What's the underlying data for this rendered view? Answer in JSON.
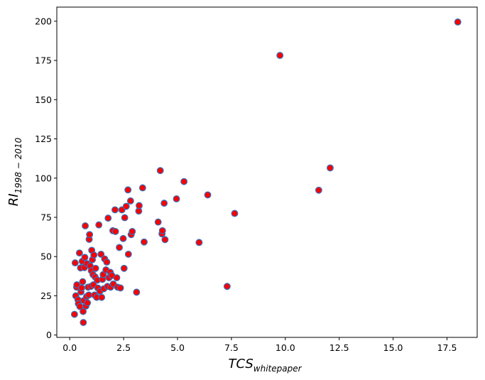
{
  "chart_data": {
    "type": "scatter",
    "title": "",
    "xlabel": {
      "main": "TCS",
      "sub": "whitepaper"
    },
    "ylabel": {
      "main": "RI",
      "sub": "1998 − 2010"
    },
    "xlim": [
      -0.6,
      18.9
    ],
    "ylim": [
      -1.5,
      209
    ],
    "xticks": [
      0.0,
      2.5,
      5.0,
      7.5,
      10.0,
      12.5,
      15.0,
      17.5
    ],
    "xtick_labels": [
      "0.0",
      "2.5",
      "5.0",
      "7.5",
      "10.0",
      "12.5",
      "15.0",
      "17.5"
    ],
    "yticks": [
      0,
      25,
      50,
      75,
      100,
      125,
      150,
      175,
      200
    ],
    "ytick_labels": [
      "0",
      "25",
      "50",
      "75",
      "100",
      "125",
      "150",
      "175",
      "200"
    ],
    "grid": false,
    "marker": {
      "face_color": "#ff0000",
      "edge_color": "#3b6db5"
    },
    "points": [
      {
        "x": 0.22,
        "y": 13.2
      },
      {
        "x": 0.25,
        "y": 46.0
      },
      {
        "x": 0.28,
        "y": 25.0
      },
      {
        "x": 0.32,
        "y": 30.5
      },
      {
        "x": 0.33,
        "y": 32.0
      },
      {
        "x": 0.38,
        "y": 22.5
      },
      {
        "x": 0.4,
        "y": 20.0
      },
      {
        "x": 0.45,
        "y": 52.3
      },
      {
        "x": 0.47,
        "y": 18.2
      },
      {
        "x": 0.5,
        "y": 42.8
      },
      {
        "x": 0.52,
        "y": 27.5
      },
      {
        "x": 0.55,
        "y": 30.0
      },
      {
        "x": 0.58,
        "y": 47.0
      },
      {
        "x": 0.6,
        "y": 34.0
      },
      {
        "x": 0.62,
        "y": 15.0
      },
      {
        "x": 0.63,
        "y": 8.0
      },
      {
        "x": 0.65,
        "y": 22.0
      },
      {
        "x": 0.68,
        "y": 43.0
      },
      {
        "x": 0.7,
        "y": 49.5
      },
      {
        "x": 0.72,
        "y": 69.6
      },
      {
        "x": 0.75,
        "y": 18.5
      },
      {
        "x": 0.78,
        "y": 24.5
      },
      {
        "x": 0.8,
        "y": 45.5
      },
      {
        "x": 0.82,
        "y": 20.5
      },
      {
        "x": 0.85,
        "y": 30.5
      },
      {
        "x": 0.88,
        "y": 25.5
      },
      {
        "x": 0.9,
        "y": 61.0
      },
      {
        "x": 0.92,
        "y": 64.0
      },
      {
        "x": 0.95,
        "y": 44.0
      },
      {
        "x": 0.98,
        "y": 31.0
      },
      {
        "x": 1.0,
        "y": 41.0
      },
      {
        "x": 1.02,
        "y": 54.0
      },
      {
        "x": 1.05,
        "y": 48.0
      },
      {
        "x": 1.08,
        "y": 38.5
      },
      {
        "x": 1.1,
        "y": 32.0
      },
      {
        "x": 1.12,
        "y": 51.0
      },
      {
        "x": 1.15,
        "y": 25.5
      },
      {
        "x": 1.18,
        "y": 37.0
      },
      {
        "x": 1.2,
        "y": 42.5
      },
      {
        "x": 1.25,
        "y": 24.0
      },
      {
        "x": 1.28,
        "y": 35.0
      },
      {
        "x": 1.3,
        "y": 30.0
      },
      {
        "x": 1.35,
        "y": 70.2
      },
      {
        "x": 1.4,
        "y": 28.0
      },
      {
        "x": 1.45,
        "y": 51.5
      },
      {
        "x": 1.48,
        "y": 24.0
      },
      {
        "x": 1.52,
        "y": 35.5
      },
      {
        "x": 1.55,
        "y": 38.5
      },
      {
        "x": 1.58,
        "y": 29.5
      },
      {
        "x": 1.62,
        "y": 48.5
      },
      {
        "x": 1.68,
        "y": 41.5
      },
      {
        "x": 1.72,
        "y": 46.5
      },
      {
        "x": 1.75,
        "y": 31.0
      },
      {
        "x": 1.78,
        "y": 74.5
      },
      {
        "x": 1.82,
        "y": 36.5
      },
      {
        "x": 1.88,
        "y": 40.0
      },
      {
        "x": 1.9,
        "y": 30.5
      },
      {
        "x": 1.95,
        "y": 38.0
      },
      {
        "x": 2.0,
        "y": 66.5
      },
      {
        "x": 2.02,
        "y": 32.5
      },
      {
        "x": 2.1,
        "y": 79.8
      },
      {
        "x": 2.12,
        "y": 66.0
      },
      {
        "x": 2.18,
        "y": 36.5
      },
      {
        "x": 2.22,
        "y": 30.5
      },
      {
        "x": 2.3,
        "y": 55.8
      },
      {
        "x": 2.35,
        "y": 30.0
      },
      {
        "x": 2.42,
        "y": 79.8
      },
      {
        "x": 2.48,
        "y": 61.5
      },
      {
        "x": 2.52,
        "y": 42.5
      },
      {
        "x": 2.55,
        "y": 74.8
      },
      {
        "x": 2.62,
        "y": 82.0
      },
      {
        "x": 2.7,
        "y": 92.5
      },
      {
        "x": 2.72,
        "y": 51.5
      },
      {
        "x": 2.82,
        "y": 85.5
      },
      {
        "x": 2.85,
        "y": 64.0
      },
      {
        "x": 2.9,
        "y": 66.0
      },
      {
        "x": 3.1,
        "y": 27.3
      },
      {
        "x": 3.2,
        "y": 79.0
      },
      {
        "x": 3.22,
        "y": 82.5
      },
      {
        "x": 3.38,
        "y": 93.8
      },
      {
        "x": 3.45,
        "y": 59.3
      },
      {
        "x": 4.1,
        "y": 72.0
      },
      {
        "x": 4.2,
        "y": 104.8
      },
      {
        "x": 4.28,
        "y": 64.5
      },
      {
        "x": 4.3,
        "y": 66.5
      },
      {
        "x": 4.38,
        "y": 84.0
      },
      {
        "x": 4.42,
        "y": 60.8
      },
      {
        "x": 4.95,
        "y": 86.8
      },
      {
        "x": 5.3,
        "y": 97.8
      },
      {
        "x": 6.0,
        "y": 59.0
      },
      {
        "x": 6.4,
        "y": 89.3
      },
      {
        "x": 7.3,
        "y": 31.0
      },
      {
        "x": 7.65,
        "y": 77.5
      },
      {
        "x": 9.75,
        "y": 178.2
      },
      {
        "x": 11.55,
        "y": 92.3
      },
      {
        "x": 12.08,
        "y": 106.5
      },
      {
        "x": 18.0,
        "y": 199.5
      }
    ]
  }
}
